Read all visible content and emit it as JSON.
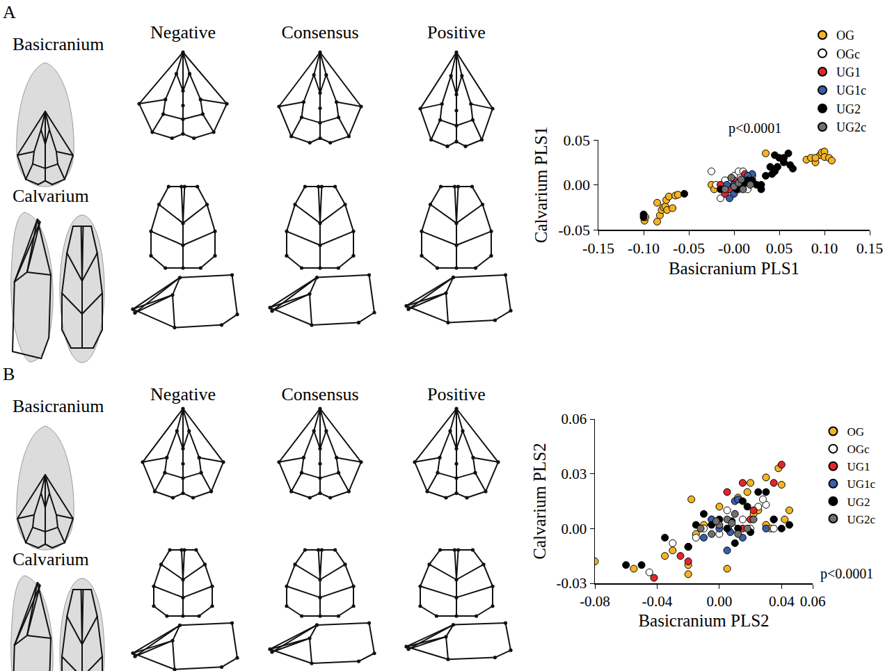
{
  "diagrams": [
    {
      "label": "A",
      "rows": [
        "Basicranium",
        "Calvarium"
      ],
      "columns": [
        "Negative",
        "Consensus",
        "Positive"
      ]
    },
    {
      "label": "B",
      "rows": [
        "Basicranium",
        "Calvarium"
      ],
      "columns": [
        "Negative",
        "Consensus",
        "Positive"
      ]
    }
  ],
  "chart_data": [
    {
      "type": "scatter",
      "x_label": "Basicranium PLS1",
      "y_label": "Calvarium PLS1",
      "annotation": "p<0.0001",
      "legend": "top right",
      "grid": false,
      "xlim": [
        -0.15,
        0.15
      ],
      "xticks": [
        {
          "value": -0.15,
          "label": "-0.15"
        },
        {
          "value": -0.1,
          "label": "-0.10"
        },
        {
          "value": -0.05,
          "label": "-0.05"
        },
        {
          "value": 0,
          "label": "-0.00"
        },
        {
          "value": 0.05,
          "label": "0.05"
        },
        {
          "value": 0.1,
          "label": "0.10"
        },
        {
          "value": 0.15,
          "label": "0.15"
        }
      ],
      "ylim": [
        -0.05,
        0.05
      ],
      "yticks": [
        {
          "value": -0.05,
          "label": "-0.05"
        },
        {
          "value": 0,
          "label": "0.00"
        },
        {
          "value": 0.05,
          "label": "0.05"
        }
      ],
      "series": [
        {
          "name": "OG",
          "color": "#f4b323",
          "marker": "circle",
          "x": [
            -0.099,
            -0.098,
            -0.085,
            -0.082,
            -0.08,
            -0.078,
            -0.076,
            -0.075,
            -0.072,
            -0.074,
            -0.068,
            -0.065,
            -0.062,
            -0.085,
            -0.025,
            -0.022,
            0.035,
            0.02,
            -0.005,
            0.08,
            0.085,
            0.09,
            0.095,
            0.097,
            0.1,
            0.1,
            0.105,
            0.108,
            0.09
          ],
          "y": [
            -0.04,
            -0.036,
            -0.041,
            -0.034,
            -0.028,
            -0.025,
            -0.024,
            -0.017,
            -0.013,
            -0.028,
            -0.026,
            -0.012,
            -0.011,
            -0.02,
            0.0,
            -0.005,
            0.035,
            0.01,
            -0.005,
            0.028,
            0.03,
            0.025,
            0.033,
            0.036,
            0.037,
            0.031,
            0.03,
            0.027,
            0.03
          ]
        },
        {
          "name": "OGc",
          "color": "#ffffff",
          "marker": "circle",
          "x": [
            -0.025,
            -0.02,
            -0.015,
            0.0,
            0.005,
            0.01,
            -0.005,
            0.015,
            0.02,
            -0.01
          ],
          "y": [
            0.015,
            0.0,
            -0.015,
            0.01,
            0.015,
            0.015,
            0.005,
            -0.005,
            0.01,
            0.005
          ]
        },
        {
          "name": "UG1",
          "color": "#e3262c",
          "marker": "circle",
          "x": [
            -0.015,
            -0.01,
            0.0,
            0.005,
            0.012,
            -0.005,
            0.02
          ],
          "y": [
            0.0,
            -0.01,
            0.005,
            -0.005,
            0.012,
            -0.005,
            0.005
          ]
        },
        {
          "name": "UG1c",
          "color": "#3a5fa8",
          "marker": "circle",
          "x": [
            -0.005,
            0.0,
            0.005,
            0.01,
            0.02,
            -0.008,
            0.0,
            0.015
          ],
          "y": [
            -0.015,
            -0.01,
            0.0,
            0.005,
            0.012,
            0.0,
            0.0,
            0.01
          ]
        },
        {
          "name": "UG2",
          "color": "#000000",
          "marker": "circle",
          "x": [
            -0.1,
            -0.1,
            -0.055,
            0.01,
            0.02,
            0.025,
            0.03,
            0.035,
            0.04,
            0.042,
            0.045,
            0.048,
            0.05,
            0.055,
            0.06,
            0.062,
            0.065,
            0.045,
            0.055,
            0.03,
            0.015,
            -0.015,
            0.003
          ],
          "y": [
            -0.033,
            -0.036,
            -0.01,
            0.0,
            0.005,
            0.0,
            0.0,
            0.01,
            0.02,
            0.012,
            0.015,
            0.02,
            0.03,
            0.025,
            0.035,
            0.022,
            0.018,
            0.033,
            0.03,
            -0.005,
            0.005,
            -0.005,
            -0.005
          ]
        },
        {
          "name": "UG2c",
          "color": "#707070",
          "marker": "circle",
          "x": [
            -0.01,
            0.0,
            0.005,
            0.01,
            0.018,
            -0.003,
            0.008
          ],
          "y": [
            -0.005,
            -0.002,
            0.002,
            -0.005,
            0.0,
            0.008,
            0.006
          ]
        }
      ]
    },
    {
      "type": "scatter",
      "x_label": "Basicranium PLS2",
      "y_label": "Calvarium PLS2",
      "annotation": "p<0.0001",
      "legend": "right",
      "grid": false,
      "xlim": [
        -0.08,
        0.06
      ],
      "xticks": [
        {
          "value": -0.08,
          "label": "-0.08"
        },
        {
          "value": -0.04,
          "label": "-0.04"
        },
        {
          "value": 0,
          "label": "0.00"
        },
        {
          "value": 0.04,
          "label": "0.04"
        },
        {
          "value": 0.06,
          "label": "0.06"
        }
      ],
      "ylim": [
        -0.03,
        0.06
      ],
      "yticks": [
        {
          "value": -0.03,
          "label": "-0.03"
        },
        {
          "value": 0,
          "label": "0.00"
        },
        {
          "value": 0.03,
          "label": "0.03"
        },
        {
          "value": 0.06,
          "label": "0.06"
        }
      ],
      "series": [
        {
          "name": "OG",
          "color": "#f4b323",
          "marker": "circle",
          "x": [
            -0.08,
            -0.055,
            -0.03,
            -0.02,
            -0.02,
            -0.018,
            -0.015,
            -0.01,
            0.0,
            0.005,
            0.01,
            0.018,
            0.02,
            0.025,
            0.03,
            0.033,
            0.035,
            0.038,
            0.04,
            0.042,
            0.045,
            0.03,
            0.022,
            0.012,
            -0.035
          ],
          "y": [
            -0.018,
            -0.022,
            -0.012,
            -0.025,
            -0.02,
            0.016,
            -0.003,
            0.002,
            0.012,
            -0.022,
            0.0,
            0.02,
            0.025,
            0.01,
            0.002,
            0.0,
            0.005,
            0.033,
            0.024,
            0.005,
            0.01,
            0.028,
            0.008,
            0.017,
            -0.015
          ]
        },
        {
          "name": "OGc",
          "color": "#ffffff",
          "marker": "circle",
          "x": [
            -0.045,
            -0.03,
            -0.02,
            -0.01,
            -0.005,
            0.0,
            0.005,
            0.01,
            0.015,
            0.02,
            0.025,
            0.03,
            0.035,
            0.028,
            -0.015
          ],
          "y": [
            -0.024,
            -0.008,
            -0.01,
            0.0,
            0.005,
            -0.003,
            0.01,
            0.0,
            0.005,
            0.0,
            0.012,
            0.013,
            0.0,
            0.016,
            -0.005
          ]
        },
        {
          "name": "UG1",
          "color": "#e3262c",
          "marker": "circle",
          "x": [
            -0.042,
            -0.025,
            -0.02,
            0.005,
            0.015,
            0.02,
            0.035,
            0.04,
            0.015,
            0.022
          ],
          "y": [
            -0.027,
            -0.015,
            -0.018,
            0.02,
            0.0,
            0.005,
            0.025,
            0.035,
            0.025,
            0.01
          ]
        },
        {
          "name": "UG1c",
          "color": "#3a5fa8",
          "marker": "circle",
          "x": [
            -0.02,
            -0.01,
            0.0,
            0.005,
            0.01,
            0.012,
            0.015,
            0.03,
            0.007,
            -0.005
          ],
          "y": [
            -0.01,
            -0.005,
            0.0,
            -0.012,
            0.015,
            0.016,
            -0.005,
            0.0,
            -0.002,
            0.005
          ]
        },
        {
          "name": "UG2",
          "color": "#000000",
          "marker": "circle",
          "x": [
            -0.06,
            -0.05,
            -0.035,
            -0.02,
            -0.01,
            -0.005,
            0.0,
            0.005,
            0.008,
            0.01,
            0.015,
            0.018,
            0.02,
            0.025,
            0.03,
            0.035,
            0.04,
            0.045,
            -0.015,
            0.012
          ],
          "y": [
            -0.02,
            -0.02,
            -0.005,
            -0.01,
            0.008,
            0.002,
            0.005,
            0.0,
            0.004,
            -0.008,
            0.015,
            0.012,
            -0.002,
            0.02,
            0.02,
            0.005,
            0.0,
            0.002,
            0.002,
            0.0
          ]
        },
        {
          "name": "UG2c",
          "color": "#707070",
          "marker": "circle",
          "x": [
            -0.012,
            -0.005,
            0.0,
            0.005,
            0.008,
            0.012,
            0.018,
            0.022,
            0.01,
            -0.002
          ],
          "y": [
            0.0,
            -0.003,
            0.002,
            0.005,
            0.003,
            -0.003,
            0.0,
            0.005,
            0.008,
            0.004
          ]
        }
      ]
    }
  ]
}
